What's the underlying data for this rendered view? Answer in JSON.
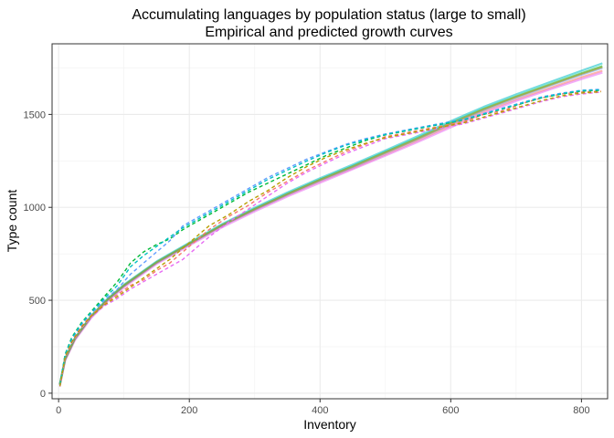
{
  "chart_data": {
    "type": "line",
    "title": "Accumulating languages by population status (large to small)",
    "subtitle": "Empirical and predicted growth curves",
    "xlabel": "Inventory",
    "ylabel": "Type count",
    "xlim": [
      -10,
      840
    ],
    "ylim": [
      -30,
      1880
    ],
    "x_ticks": [
      0,
      200,
      400,
      600,
      800
    ],
    "y_ticks": [
      0,
      500,
      1000,
      1500
    ],
    "grid": true,
    "legend": "none",
    "predicted_series": [
      {
        "color": "#F8766D",
        "x": [
          2,
          10,
          25,
          50,
          75,
          100,
          150,
          200,
          250,
          300,
          350,
          400,
          450,
          500,
          550,
          600,
          650,
          700,
          750,
          800,
          832
        ],
        "y": [
          45,
          180,
          290,
          410,
          500,
          575,
          700,
          800,
          900,
          985,
          1065,
          1140,
          1210,
          1285,
          1360,
          1440,
          1515,
          1580,
          1640,
          1700,
          1735
        ]
      },
      {
        "color": "#E76BF3",
        "x": [
          2,
          10,
          25,
          50,
          75,
          100,
          150,
          200,
          250,
          300,
          350,
          400,
          450,
          500,
          550,
          600,
          650,
          700,
          750,
          800,
          832
        ],
        "y": [
          42,
          175,
          285,
          405,
          495,
          570,
          695,
          795,
          892,
          978,
          1058,
          1132,
          1205,
          1278,
          1352,
          1430,
          1505,
          1572,
          1632,
          1690,
          1725
        ]
      },
      {
        "color": "#00BA38",
        "x": [
          2,
          10,
          25,
          50,
          75,
          100,
          150,
          200,
          250,
          300,
          350,
          400,
          450,
          500,
          550,
          600,
          650,
          700,
          750,
          800,
          832
        ],
        "y": [
          48,
          185,
          295,
          415,
          505,
          580,
          705,
          805,
          905,
          992,
          1073,
          1150,
          1222,
          1298,
          1375,
          1455,
          1530,
          1597,
          1660,
          1722,
          1760
        ]
      },
      {
        "color": "#619CFF",
        "x": [
          2,
          10,
          25,
          50,
          75,
          100,
          150,
          200,
          250,
          300,
          350,
          400,
          450,
          500,
          550,
          600,
          650,
          700,
          750,
          800,
          832
        ],
        "y": [
          46,
          182,
          292,
          412,
          502,
          578,
          702,
          802,
          902,
          988,
          1069,
          1145,
          1216,
          1292,
          1368,
          1448,
          1523,
          1590,
          1652,
          1713,
          1750
        ]
      },
      {
        "color": "#00BFC4",
        "x": [
          2,
          10,
          25,
          50,
          75,
          100,
          150,
          200,
          250,
          300,
          350,
          400,
          450,
          500,
          550,
          600,
          650,
          700,
          750,
          800,
          832
        ],
        "y": [
          50,
          188,
          298,
          418,
          508,
          584,
          709,
          810,
          910,
          998,
          1080,
          1157,
          1230,
          1306,
          1384,
          1464,
          1540,
          1608,
          1672,
          1735,
          1775
        ]
      },
      {
        "color": "#B79F00",
        "x": [
          2,
          10,
          25,
          50,
          75,
          100,
          150,
          200,
          250,
          300,
          350,
          400,
          450,
          500,
          550,
          600,
          650,
          700,
          750,
          800,
          832
        ],
        "y": [
          47,
          184,
          294,
          414,
          504,
          580,
          704,
          804,
          904,
          990,
          1071,
          1148,
          1219,
          1295,
          1371,
          1451,
          1527,
          1594,
          1656,
          1718,
          1755
        ]
      }
    ],
    "empirical_series": [
      {
        "color": "#F8766D",
        "x": [
          2,
          10,
          20,
          35,
          50,
          70,
          90,
          110,
          130,
          150,
          170,
          190,
          210,
          230,
          260,
          290,
          320,
          350,
          380,
          410,
          440,
          470,
          500,
          530,
          560,
          590,
          620,
          650,
          680,
          710,
          740,
          770,
          800,
          830
        ],
        "y": [
          40,
          200,
          280,
          360,
          420,
          480,
          530,
          580,
          610,
          660,
          700,
          760,
          820,
          880,
          950,
          1010,
          1080,
          1140,
          1200,
          1250,
          1300,
          1340,
          1380,
          1400,
          1420,
          1440,
          1460,
          1500,
          1520,
          1560,
          1590,
          1610,
          1620,
          1625
        ]
      },
      {
        "color": "#E76BF3",
        "x": [
          2,
          10,
          20,
          35,
          50,
          70,
          90,
          110,
          130,
          150,
          170,
          190,
          210,
          230,
          260,
          290,
          320,
          350,
          380,
          410,
          440,
          470,
          500,
          530,
          560,
          590,
          620,
          650,
          680,
          710,
          740,
          770,
          800,
          830
        ],
        "y": [
          35,
          190,
          270,
          350,
          410,
          470,
          510,
          560,
          600,
          640,
          680,
          720,
          780,
          840,
          920,
          990,
          1060,
          1130,
          1190,
          1240,
          1290,
          1330,
          1370,
          1390,
          1410,
          1430,
          1450,
          1480,
          1510,
          1540,
          1570,
          1595,
          1610,
          1620
        ]
      },
      {
        "color": "#00BA38",
        "x": [
          2,
          10,
          20,
          35,
          50,
          70,
          90,
          110,
          130,
          150,
          170,
          190,
          210,
          230,
          260,
          290,
          320,
          350,
          380,
          410,
          440,
          470,
          500,
          530,
          560,
          590,
          620,
          650,
          680,
          710,
          740,
          770,
          800,
          830
        ],
        "y": [
          45,
          210,
          300,
          380,
          440,
          520,
          600,
          700,
          760,
          800,
          830,
          880,
          920,
          960,
          1020,
          1080,
          1130,
          1180,
          1230,
          1280,
          1320,
          1360,
          1390,
          1410,
          1430,
          1450,
          1470,
          1500,
          1530,
          1560,
          1590,
          1610,
          1625,
          1630
        ]
      },
      {
        "color": "#619CFF",
        "x": [
          2,
          10,
          20,
          35,
          50,
          70,
          90,
          110,
          130,
          150,
          170,
          190,
          210,
          230,
          260,
          290,
          320,
          350,
          380,
          410,
          440,
          470,
          500,
          530,
          560,
          590,
          620,
          650,
          680,
          710,
          740,
          770,
          800,
          830
        ],
        "y": [
          42,
          205,
          290,
          370,
          430,
          500,
          560,
          640,
          700,
          760,
          820,
          900,
          940,
          980,
          1040,
          1100,
          1160,
          1210,
          1260,
          1300,
          1340,
          1370,
          1395,
          1415,
          1435,
          1455,
          1475,
          1505,
          1535,
          1565,
          1595,
          1615,
          1630,
          1635
        ]
      },
      {
        "color": "#00BFC4",
        "x": [
          2,
          10,
          20,
          35,
          50,
          70,
          90,
          110,
          130,
          150,
          170,
          190,
          210,
          230,
          260,
          290,
          320,
          350,
          380,
          410,
          440,
          470,
          500,
          530,
          560,
          590,
          620,
          650,
          680,
          710,
          740,
          770,
          800,
          830
        ],
        "y": [
          44,
          208,
          295,
          375,
          435,
          510,
          580,
          680,
          740,
          790,
          840,
          890,
          930,
          970,
          1030,
          1090,
          1150,
          1200,
          1250,
          1295,
          1335,
          1365,
          1392,
          1412,
          1432,
          1452,
          1472,
          1502,
          1532,
          1562,
          1592,
          1612,
          1628,
          1632
        ]
      },
      {
        "color": "#B79F00",
        "x": [
          2,
          10,
          20,
          35,
          50,
          70,
          90,
          110,
          130,
          150,
          170,
          190,
          210,
          230,
          260,
          290,
          320,
          350,
          380,
          410,
          440,
          470,
          500,
          530,
          560,
          590,
          620,
          650,
          680,
          710,
          740,
          770,
          800,
          830
        ],
        "y": [
          38,
          195,
          275,
          355,
          415,
          475,
          520,
          570,
          620,
          670,
          720,
          780,
          840,
          900,
          960,
          1030,
          1090,
          1160,
          1220,
          1270,
          1310,
          1345,
          1375,
          1395,
          1415,
          1435,
          1455,
          1485,
          1515,
          1545,
          1575,
          1600,
          1615,
          1622
        ]
      }
    ]
  }
}
